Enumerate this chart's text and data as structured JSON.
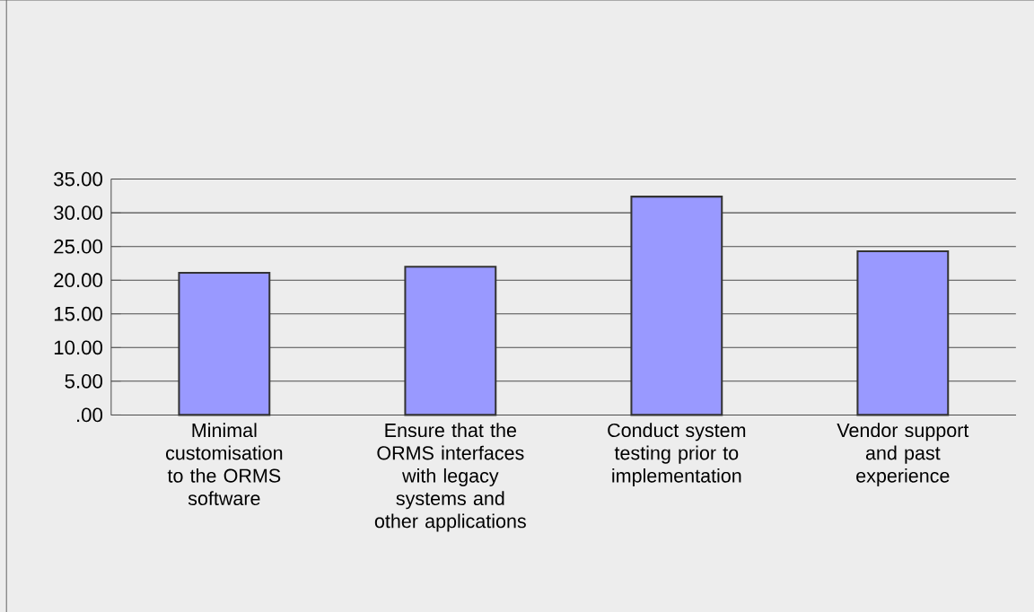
{
  "chart_data": {
    "type": "bar",
    "categories": [
      "Minimal customisation to the ORMS software",
      "Ensure that the ORMS interfaces with legacy systems and other applications",
      "Conduct system testing prior to implementation",
      "Vendor support and past experience"
    ],
    "values": [
      21.1,
      22.0,
      32.4,
      24.3
    ],
    "color": "#9999ff",
    "ylim": [
      0,
      35
    ],
    "yticks": [
      {
        "value": 0,
        "label": ".00"
      },
      {
        "value": 5,
        "label": "5.00"
      },
      {
        "value": 10,
        "label": "10.00"
      },
      {
        "value": 15,
        "label": "15.00"
      },
      {
        "value": 20,
        "label": "20.00"
      },
      {
        "value": 25,
        "label": "25.00"
      },
      {
        "value": 30,
        "label": "30.00"
      },
      {
        "value": 35,
        "label": "35.00"
      }
    ],
    "grid": "y"
  }
}
